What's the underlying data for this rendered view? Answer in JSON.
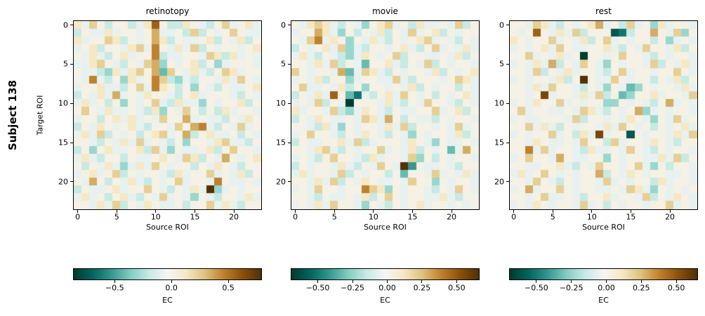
{
  "figure": {
    "row_label": "Subject 138",
    "shared_ylabel": "Target ROI",
    "shared_xlabel": "Source ROI",
    "colorbar_label": "EC",
    "colormap": {
      "name": "BrBG_r (teal-white-brown diverging)",
      "stops": [
        "#003c30",
        "#01665e",
        "#35978f",
        "#80cdc1",
        "#c7eae5",
        "#f5f5f5",
        "#f6e8c3",
        "#dfc27d",
        "#bf812d",
        "#8c510a",
        "#543005"
      ]
    },
    "value_encoding": "hex16: each hex digit d in a row string maps to value = vmin + (d/15)*(vmax-vmin)"
  },
  "chart_data": [
    {
      "type": "heatmap",
      "title": "retinotopy",
      "xlabel": "Source ROI",
      "ylabel": "Target ROI",
      "n_rows": 24,
      "n_cols": 24,
      "x_ticks": [
        0,
        5,
        10,
        15,
        20
      ],
      "y_ticks": [
        0,
        5,
        10,
        15,
        20
      ],
      "vmin": -0.86,
      "vmax": 0.79,
      "colorbar": {
        "label": "EC",
        "ticks": [
          -0.5,
          0.0,
          0.5
        ],
        "tick_labels": [
          "−0.5",
          "0.0",
          "0.5"
        ]
      },
      "rows": [
        "97a8688679d86698768a7897",
        "6877978878b7786a6878a877",
        "9788a96878b9687789687968",
        "78968879a7c8797a68788789",
        "8797689788c677887a969787",
        "779a87687ab5878968578887",
        "87765979a8b4a879768a9788",
        "87c7685978ca657688797a87",
        "78897768a7c9868587687789",
        "68797b787988768978887687",
        "7978685878a7697758788968",
        "8a879778769587a868697887",
        "78868979787a88b787768798",
        "6879878976887a8bc7687a78",
        "797a6878689a78b689778687",
        "88768797a7876858879a7768",
        "6858977896a758778968a887",
        "79768868778987a9687b8789",
        "8687975797a8788687987688",
        "78978a68788769788a787968",
        "87b8687976878a7887c87787",
        "687789788a8768797f578788",
        "79786897687a787587688797",
        "88797a68798778688a797688"
      ]
    },
    {
      "type": "heatmap",
      "title": "movie",
      "xlabel": "Source ROI",
      "ylabel": "Target ROI",
      "n_rows": 24,
      "n_cols": 24,
      "x_ticks": [
        0,
        5,
        10,
        15,
        20
      ],
      "y_ticks": [
        0,
        5,
        10,
        15,
        20
      ],
      "vmin": -0.69,
      "vmax": 0.66,
      "colorbar": {
        "label": "EC",
        "ticks": [
          -0.5,
          -0.25,
          0.0,
          0.25,
          0.5
        ],
        "tick_labels": [
          "−0.50",
          "−0.25",
          "0.00",
          "0.25",
          "0.50"
        ]
      },
      "rows": [
        "879a97687589a78697787a68",
        "788b97586879687a78968788",
        "87ac7985879768789a787687",
        "687897a57688789768a78797",
        "7976876579878a6887787968",
        "88797a68748897687a687887",
        "a87887b47a97687887968789",
        "7879688578877a7688878a97",
        "8a7787968588787968788687",
        "68797d84276897a878687897",
        "787a6870888797687a887687",
        "97887a657987687788a78968",
        "687987787a97b86877687887",
        "88769758788797a688787a78",
        "78a887687987687587887968",
        "68778897a678887987587787",
        "8879a768788a7879687847b8",
        "78768a887697887a58687887",
        "68788797687a87f387787688",
        "797887a68788684887a78797",
        "88797a687987787a88587887",
        "787a88788ca9587887687a87",
        "887687787968a87887797688",
        "78797a887587687897887878"
      ]
    },
    {
      "type": "heatmap",
      "title": "rest",
      "xlabel": "Source ROI",
      "ylabel": "Target ROI",
      "n_rows": 24,
      "n_cols": 24,
      "x_ticks": [
        0,
        5,
        10,
        15,
        20
      ],
      "y_ticks": [
        0,
        5,
        10,
        15,
        20
      ],
      "vmin": -0.69,
      "vmax": 0.65,
      "colorbar": {
        "label": "EC",
        "ticks": [
          -0.5,
          -0.25,
          0.0,
          0.25,
          0.5
        ],
        "tick_labels": [
          "−0.50",
          "−0.25",
          "0.00",
          "0.25",
          "0.50"
        ]
      },
      "rows": [
        "887a9768789b786a78597887",
        "878d8797a688812688b87a58",
        "98788a787968a78788685787",
        "787897a8778897687a887968",
        "88a78797808878a887687887",
        "78797b687a87587887a68797",
        "887a6879788768a788788a87",
        "787887968f877a8788687968",
        "88797a887687587458788797",
        "8878e788797a68458897887a",
        "787988a7878855878768b787",
        "8a7887787a976878b5787887",
        "78778887a688787987587a78",
        "88a79768788797a878687897",
        "78788a78697e78818788797a",
        "887987787a886a7887987688",
        "88c7a7887697787a87687887",
        "78a887b87788587887797a68",
        "88778897687a8878a7586887",
        "7978a878788b687987887787",
        "887a87687887a78788697887",
        "78b788a87887787a97587878",
        "8878a778768897887a687987",
        "787987887a7868788788a787"
      ]
    }
  ]
}
